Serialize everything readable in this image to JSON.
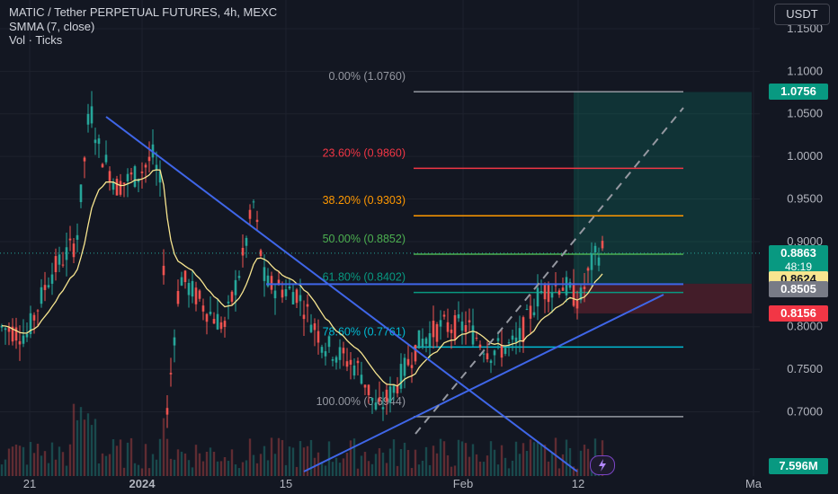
{
  "header": {
    "title": "MATIC / Tether PERPETUAL FUTURES, 4h, MEXC",
    "indicator_1": "SMMA (7, close)",
    "indicator_2": "Vol · Ticks"
  },
  "currency_button": "USDT",
  "colors": {
    "background": "#131722",
    "grid": "#1e222d",
    "up": "#26a69a",
    "down": "#ef5350",
    "smma": "#f7e58f",
    "trendline": "#3f66e8",
    "fib_0": "#9598a1",
    "fib_236": "#f23645",
    "fib_382": "#ff9800",
    "fib_500": "#4caf50",
    "fib_618": "#089981",
    "fib_786": "#00bcd4",
    "fib_100": "#9598a1"
  },
  "price_tags": {
    "target": {
      "value": "1.0756",
      "color": "#089981"
    },
    "last": {
      "value": "0.8863",
      "countdown": "48:19",
      "color": "#089981"
    },
    "smma": {
      "value": "0.8624",
      "color": "#f7e58f"
    },
    "entry": {
      "value": "0.8505",
      "color": "#787b86"
    },
    "stop": {
      "value": "0.8156",
      "color": "#f23645"
    },
    "volume": {
      "value": "7.596M",
      "color": "#089981"
    }
  },
  "chart_data": {
    "type": "candlestick",
    "symbol": "MATIC/USDT",
    "interval": "4h",
    "exchange": "MEXC",
    "ylim": [
      0.655,
      1.185
    ],
    "y_ticks": [
      "1.1500",
      "1.1000",
      "1.0500",
      "1.0000",
      "0.9500",
      "0.9000",
      "0.8000",
      "0.7500",
      "0.7000"
    ],
    "x_ticks": [
      "21",
      "2024",
      "15",
      "Feb",
      "12",
      "Ma"
    ],
    "fib_levels": [
      {
        "label": "0.00% (1.0760)",
        "ratio": 0,
        "price": 1.076,
        "key": "fib_0"
      },
      {
        "label": "23.60% (0.9860)",
        "ratio": 0.236,
        "price": 0.986,
        "key": "fib_236"
      },
      {
        "label": "38.20% (0.9303)",
        "ratio": 0.382,
        "price": 0.9303,
        "key": "fib_382"
      },
      {
        "label": "50.00% (0.8852)",
        "ratio": 0.5,
        "price": 0.8852,
        "key": "fib_500"
      },
      {
        "label": "61.80% (0.8402)",
        "ratio": 0.618,
        "price": 0.8402,
        "key": "fib_618"
      },
      {
        "label": "78.60% (0.7761)",
        "ratio": 0.786,
        "price": 0.7761,
        "key": "fib_786"
      },
      {
        "label": "100.00% (0.6944)",
        "ratio": 1,
        "price": 0.6944,
        "key": "fib_100"
      }
    ],
    "position": {
      "entry": 0.8505,
      "target": 1.0756,
      "stop": 0.8156
    },
    "last_price": 0.8863,
    "smma_last": 0.8624,
    "volume_last": "7.596M"
  }
}
